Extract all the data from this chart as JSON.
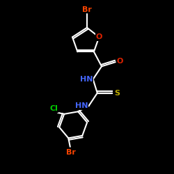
{
  "background_color": "#000000",
  "bond_color": "#ffffff",
  "bond_width": 1.5,
  "atom_colors": {
    "N": "#4466ff",
    "O": "#dd2200",
    "S": "#bbaa00",
    "Br": "#ff4400",
    "Cl": "#00cc00"
  },
  "font_size": 8,
  "fig_size": [
    2.5,
    2.5
  ],
  "dpi": 100
}
